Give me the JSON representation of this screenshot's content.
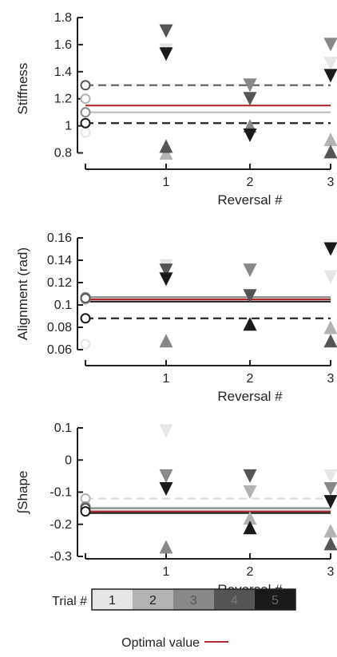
{
  "chart_data": [
    {
      "type": "scatter",
      "ylabel": "Stiffness",
      "xlabel": "Reversal #",
      "xticks": [
        "1",
        "2",
        "3"
      ],
      "yticks": [
        "0.8",
        "1",
        "1.2",
        "1.4",
        "1.6",
        "1.8"
      ],
      "ylim": [
        0.75,
        1.8
      ],
      "xlim": [
        0,
        3
      ],
      "initial_values": [
        {
          "trial": 1,
          "value": 0.95
        },
        {
          "trial": 2,
          "value": 1.2
        },
        {
          "trial": 3,
          "value": 1.1
        },
        {
          "trial": 4,
          "value": 1.3
        },
        {
          "trial": 5,
          "value": 1.02
        }
      ],
      "reversal_points": [
        {
          "trial": 1,
          "reversal": 1,
          "value": 1.56,
          "direction": "down"
        },
        {
          "trial": 4,
          "reversal": 1,
          "value": 1.7,
          "direction": "down"
        },
        {
          "trial": 5,
          "reversal": 1,
          "value": 1.53,
          "direction": "down"
        },
        {
          "trial": 2,
          "reversal": 1,
          "value": 0.8,
          "direction": "up"
        },
        {
          "trial": 4,
          "reversal": 1,
          "value": 0.85,
          "direction": "up"
        },
        {
          "trial": 3,
          "reversal": 2,
          "value": 1.3,
          "direction": "down"
        },
        {
          "trial": 4,
          "reversal": 2,
          "value": 1.2,
          "direction": "down"
        },
        {
          "trial": 3,
          "reversal": 2,
          "value": 1.0,
          "direction": "up"
        },
        {
          "trial": 5,
          "reversal": 2,
          "value": 0.93,
          "direction": "down"
        },
        {
          "trial": 1,
          "reversal": 3,
          "value": 1.46,
          "direction": "down"
        },
        {
          "trial": 3,
          "reversal": 3,
          "value": 1.6,
          "direction": "down"
        },
        {
          "trial": 5,
          "reversal": 3,
          "value": 1.37,
          "direction": "down"
        },
        {
          "trial": 2,
          "reversal": 3,
          "value": 0.9,
          "direction": "up"
        },
        {
          "trial": 4,
          "reversal": 3,
          "value": 0.81,
          "direction": "up"
        }
      ],
      "reference_lines": [
        {
          "value": 1.3,
          "color": "#666666",
          "style": "dashed"
        },
        {
          "value": 1.15,
          "color": "#b02a30",
          "style": "solid"
        },
        {
          "value": 1.1,
          "color": "#bbbbbb",
          "style": "solid"
        },
        {
          "value": 1.02,
          "color": "#222222",
          "style": "dashed"
        }
      ]
    },
    {
      "type": "scatter",
      "ylabel": "Alignment (rad)",
      "xlabel": "Reversal #",
      "xticks": [
        "1",
        "2",
        "3"
      ],
      "yticks": [
        "0.06",
        "0.08",
        "0.1",
        "0.12",
        "0.14",
        "0.16"
      ],
      "ylim": [
        0.06,
        0.16
      ],
      "xlim": [
        0,
        3
      ],
      "initial_values": [
        {
          "trial": 1,
          "value": 0.065
        },
        {
          "trial": 2,
          "value": 0.105
        },
        {
          "trial": 3,
          "value": 0.107
        },
        {
          "trial": 4,
          "value": 0.106
        },
        {
          "trial": 5,
          "value": 0.088
        }
      ],
      "reversal_points": [
        {
          "trial": 1,
          "reversal": 1,
          "value": 0.135,
          "direction": "down"
        },
        {
          "trial": 4,
          "reversal": 1,
          "value": 0.131,
          "direction": "down"
        },
        {
          "trial": 5,
          "reversal": 1,
          "value": 0.123,
          "direction": "down"
        },
        {
          "trial": 3,
          "reversal": 1,
          "value": 0.068,
          "direction": "up"
        },
        {
          "trial": 3,
          "reversal": 2,
          "value": 0.131,
          "direction": "down"
        },
        {
          "trial": 4,
          "reversal": 2,
          "value": 0.108,
          "direction": "down"
        },
        {
          "trial": 5,
          "reversal": 2,
          "value": 0.083,
          "direction": "up"
        },
        {
          "trial": 5,
          "reversal": 3,
          "value": 0.15,
          "direction": "down"
        },
        {
          "trial": 1,
          "reversal": 3,
          "value": 0.125,
          "direction": "down"
        },
        {
          "trial": 2,
          "reversal": 3,
          "value": 0.08,
          "direction": "up"
        },
        {
          "trial": 4,
          "reversal": 3,
          "value": 0.068,
          "direction": "up"
        }
      ],
      "reference_lines": [
        {
          "value": 0.107,
          "color": "#888888",
          "style": "solid"
        },
        {
          "value": 0.105,
          "color": "#b02a30",
          "style": "solid"
        },
        {
          "value": 0.103,
          "color": "#222222",
          "style": "solid"
        },
        {
          "value": 0.088,
          "color": "#222222",
          "style": "dashed"
        }
      ]
    },
    {
      "type": "scatter",
      "ylabel": "∫Shape",
      "xlabel": "Reversal #",
      "xticks": [
        "1",
        "2",
        "3"
      ],
      "yticks": [
        "0.1",
        "0",
        "-0.1",
        "-0.2",
        "-0.3"
      ],
      "ylim": [
        -0.3,
        0.1
      ],
      "xlim": [
        0,
        3
      ],
      "initial_values": [
        {
          "trial": 1,
          "value": -0.12
        },
        {
          "trial": 2,
          "value": -0.12
        },
        {
          "trial": 3,
          "value": -0.145
        },
        {
          "trial": 4,
          "value": -0.15
        },
        {
          "trial": 5,
          "value": -0.16
        }
      ],
      "reversal_points": [
        {
          "trial": 1,
          "reversal": 1,
          "value": 0.09,
          "direction": "down"
        },
        {
          "trial": 3,
          "reversal": 1,
          "value": -0.05,
          "direction": "down"
        },
        {
          "trial": 5,
          "reversal": 1,
          "value": -0.09,
          "direction": "down"
        },
        {
          "trial": 3,
          "reversal": 1,
          "value": -0.27,
          "direction": "up"
        },
        {
          "trial": 2,
          "reversal": 2,
          "value": -0.1,
          "direction": "down"
        },
        {
          "trial": 4,
          "reversal": 2,
          "value": -0.05,
          "direction": "down"
        },
        {
          "trial": 2,
          "reversal": 2,
          "value": -0.18,
          "direction": "up"
        },
        {
          "trial": 5,
          "reversal": 2,
          "value": -0.21,
          "direction": "up"
        },
        {
          "trial": 1,
          "reversal": 3,
          "value": -0.05,
          "direction": "down"
        },
        {
          "trial": 3,
          "reversal": 3,
          "value": -0.09,
          "direction": "down"
        },
        {
          "trial": 5,
          "reversal": 3,
          "value": -0.13,
          "direction": "down"
        },
        {
          "trial": 2,
          "reversal": 3,
          "value": -0.22,
          "direction": "up"
        },
        {
          "trial": 4,
          "reversal": 3,
          "value": -0.26,
          "direction": "up"
        }
      ],
      "reference_lines": [
        {
          "value": -0.12,
          "color": "#dddddd",
          "style": "dashed"
        },
        {
          "value": -0.15,
          "color": "#888888",
          "style": "solid"
        },
        {
          "value": -0.16,
          "color": "#b02a30",
          "style": "solid"
        },
        {
          "value": -0.165,
          "color": "#222222",
          "style": "solid"
        }
      ]
    }
  ],
  "trial_colors": [
    "#e6e6e6",
    "#b3b3b3",
    "#888888",
    "#555555",
    "#1a1a1a"
  ],
  "legend": {
    "trial_label": "Trial #",
    "trial_numbers": [
      "1",
      "2",
      "3",
      "4",
      "5"
    ],
    "trial_number_colors": [
      "#231f20",
      "#231f20",
      "#555555",
      "#777777",
      "#666666"
    ],
    "optimal_label": "Optimal value",
    "optimal_color": "#b02a30"
  }
}
